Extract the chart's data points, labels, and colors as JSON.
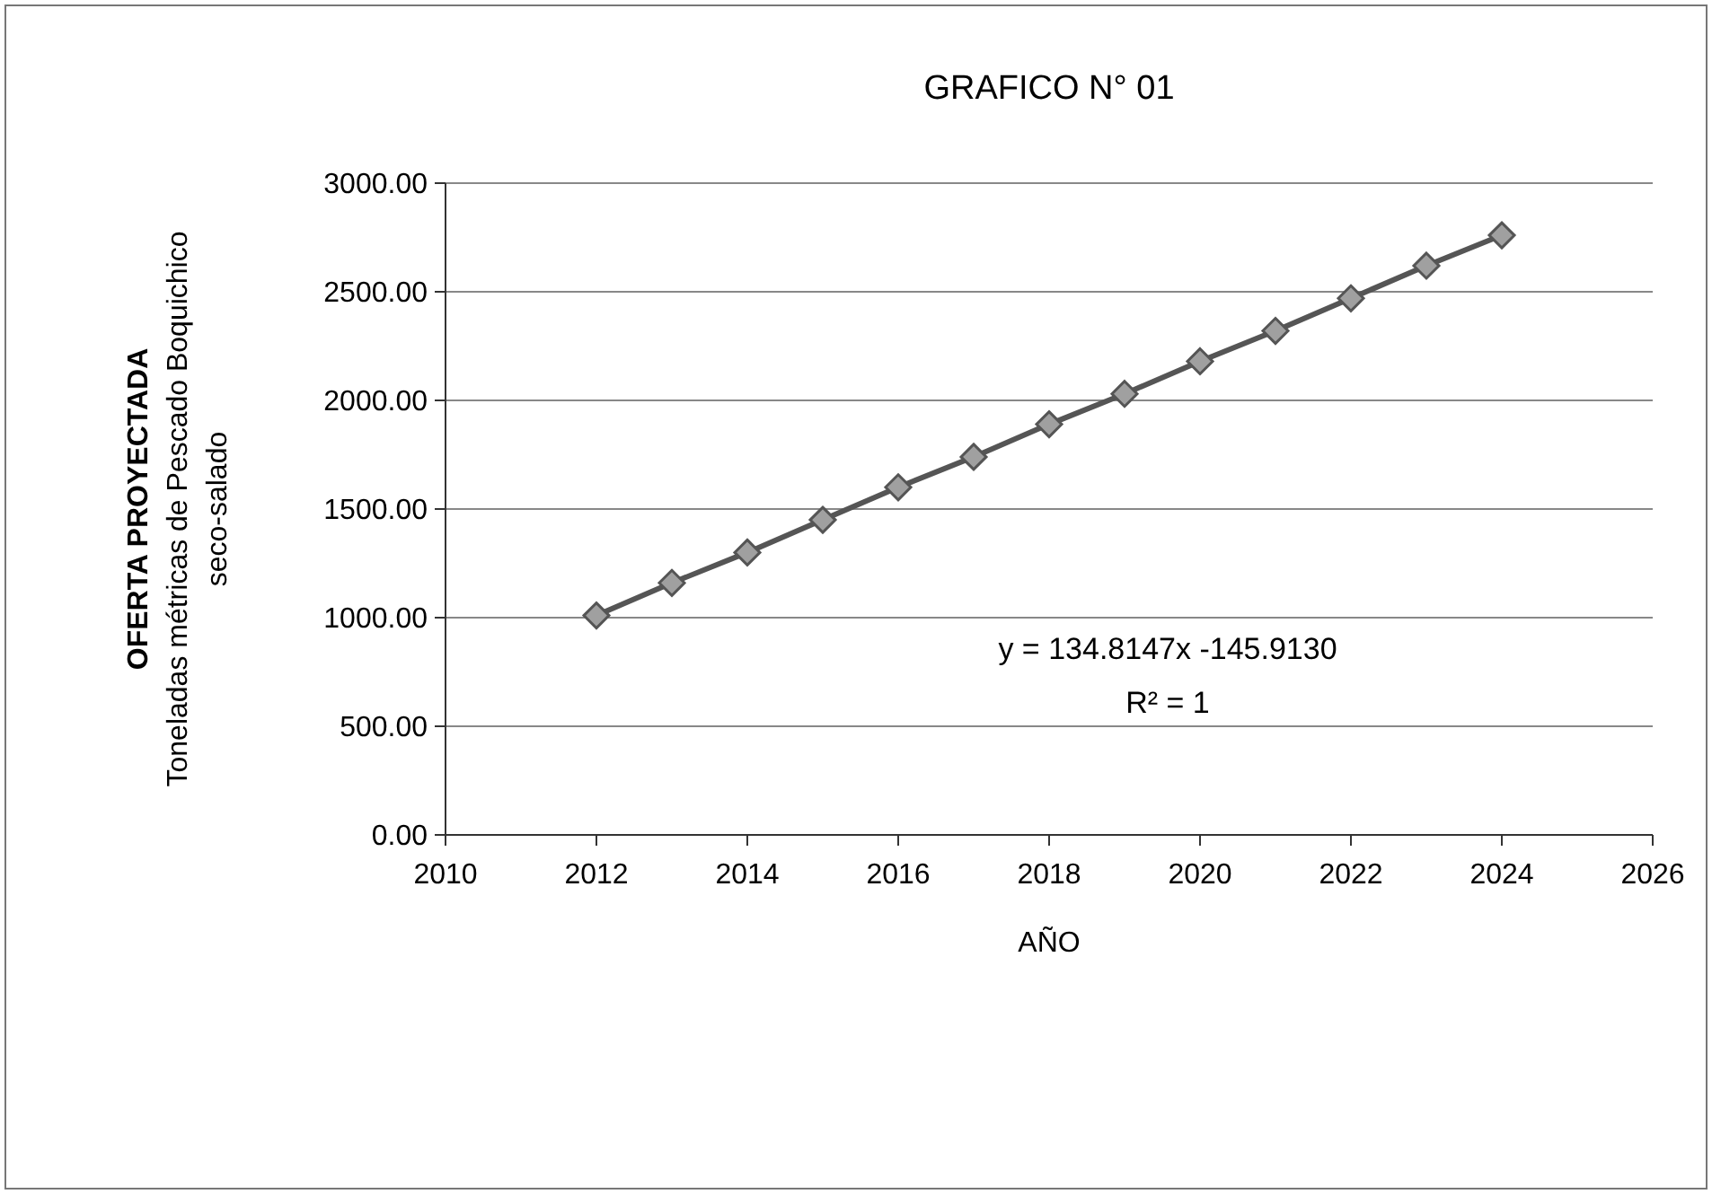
{
  "chart_data": {
    "type": "line",
    "title": "GRAFICO N° 01",
    "xlabel": "AÑO",
    "ylabel": [
      "OFERTA PROYECTADA",
      "Toneladas métricas de Pescado Boquichico",
      "seco-salado"
    ],
    "x": [
      2012,
      2013,
      2014,
      2015,
      2016,
      2017,
      2018,
      2019,
      2020,
      2021,
      2022,
      2023,
      2024
    ],
    "series": [
      {
        "color": "#555555",
        "values": [
          1010,
          1160,
          1300,
          1450,
          1600,
          1740,
          1890,
          2030,
          2180,
          2320,
          2470,
          2620,
          2760
        ]
      }
    ],
    "xlim": [
      2010,
      2026
    ],
    "xticks": [
      2010,
      2012,
      2014,
      2016,
      2018,
      2020,
      2022,
      2024,
      2026
    ],
    "ylim": [
      0,
      3000
    ],
    "yticks": [
      {
        "value": 0,
        "label": "0.00"
      },
      {
        "value": 500,
        "label": "500.00"
      },
      {
        "value": 1000,
        "label": "1000.00"
      },
      {
        "value": 1500,
        "label": "1500.00"
      },
      {
        "value": 2000,
        "label": "2000.00"
      },
      {
        "value": 2500,
        "label": "2500.00"
      },
      {
        "value": 3000,
        "label": "3000.00"
      }
    ],
    "grid": "y",
    "marker": "diamond",
    "line_style": "solid",
    "annotations": [
      "y = 134.8147x -145.9130",
      "R² = 1"
    ]
  }
}
